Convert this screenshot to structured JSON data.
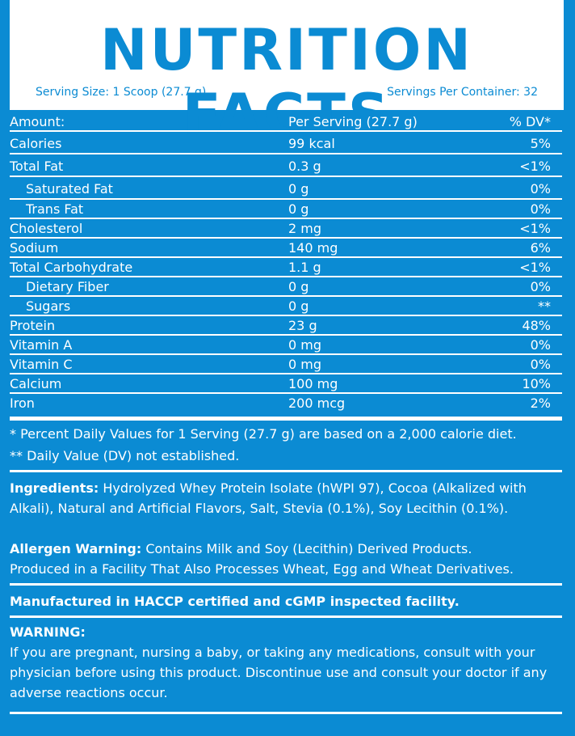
{
  "header": {
    "title": "NUTRITION FACTS",
    "serving_size": "Serving Size: 1 Scoop (27.7 g)",
    "servings_per_container": "Servings Per Container: 32"
  },
  "table": {
    "columns": [
      "Amount:",
      "Per Serving (27.7 g)",
      "% DV*"
    ],
    "rows": [
      [
        "Calories",
        "99 kcal",
        "5%"
      ],
      [
        "Total Fat",
        "0.3 g",
        "<1%"
      ],
      [
        "Saturated Fat",
        "0 g",
        "0%"
      ],
      [
        "Trans Fat",
        "0 g",
        "0%"
      ],
      [
        "Cholesterol",
        "2 mg",
        "<1%"
      ],
      [
        "Sodium",
        "140 mg",
        "6%"
      ],
      [
        "Total Carbohydrate",
        "1.1 g",
        "<1%"
      ],
      [
        "Dietary Fiber",
        "0 g",
        "0%"
      ],
      [
        "Sugars",
        "0 g",
        "**"
      ],
      [
        "Protein",
        "23 g",
        "48%"
      ],
      [
        "Vitamin A",
        "0 mg",
        "0%"
      ],
      [
        "Vitamin C",
        "0 mg",
        "0%"
      ],
      [
        "Calcium",
        "100 mg",
        "10%"
      ],
      [
        "Iron",
        "200 mcg",
        "2%"
      ]
    ]
  },
  "footnotes": [
    "* Percent Daily Values for 1 Serving (27.7 g) are based on a 2,000 calorie diet.",
    "** Daily Value (DV) not established."
  ],
  "ingredients": {
    "label": "Ingredients:",
    "text": "Hydrolyzed Whey Protein Isolate (hWPI 97), Cocoa (Alkalized with Alkali), Natural and Artificial Flavors, Salt, Stevia (0.1%), Soy Lecithin (0.1%)."
  },
  "allergen": {
    "label": "Allergen Warning:",
    "lines": [
      "Contains Milk and Soy (Lecithin) Derived Products.",
      "Produced in a Facility That Also Processes Wheat, Egg and Wheat Derivatives."
    ]
  },
  "manufactured": "Manufactured in HACCP certified and cGMP inspected facility.",
  "warning": {
    "label": "WARNING:",
    "text": "If you are pregnant, nursing a baby, or taking any medications, consult with your physician before using this product. Discontinue use and consult your doctor if any adverse reactions occur."
  }
}
